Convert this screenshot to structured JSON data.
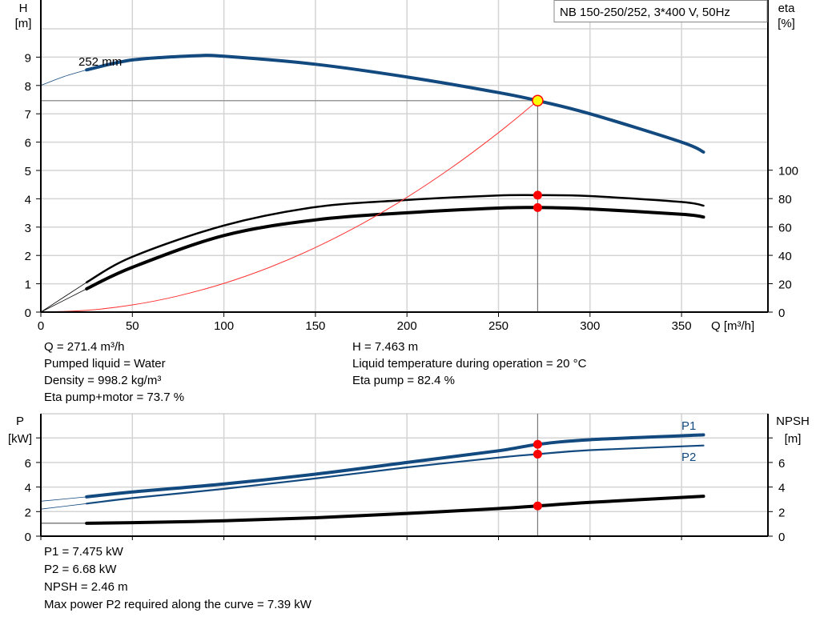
{
  "colors": {
    "head": "#12497f",
    "power": "#12497f",
    "eta": "#000000",
    "npsh": "#000000",
    "system": "#ff3333",
    "marker": "#ff0000",
    "duty_marker": "#ffff00",
    "grid": "#d4d4d4"
  },
  "chart_data": [
    {
      "type": "line",
      "title": "NB 150-250/252, 3*400 V, 50Hz",
      "xlabel": "Q [m³/h]",
      "ylabel": "H\n[m]",
      "ylabel_line1": "H",
      "ylabel_line2": "[m]",
      "y2label_line1": "eta",
      "y2label_line2": "[%]",
      "xlim": [
        0,
        400
      ],
      "ylim": [
        0,
        11
      ],
      "y2lim": [
        0,
        220
      ],
      "x_ticks": [
        0,
        50,
        100,
        150,
        200,
        250,
        300,
        350
      ],
      "y_ticks": [
        0,
        1,
        2,
        3,
        4,
        5,
        6,
        7,
        8,
        9
      ],
      "y2_ticks": [
        0,
        20,
        40,
        60,
        80,
        100
      ],
      "grid": true,
      "curve_label": "252 mm",
      "series": [
        {
          "key": "head",
          "axis": "left",
          "x": [
            25,
            50,
            85,
            100,
            150,
            200,
            250,
            271.4,
            300,
            350,
            362
          ],
          "y": [
            8.55,
            8.9,
            9.05,
            9.03,
            8.75,
            8.3,
            7.75,
            7.463,
            7.0,
            6.0,
            5.65
          ],
          "extension": {
            "x": [
              0,
              12,
              25
            ],
            "y": [
              8.0,
              8.3,
              8.55
            ]
          }
        },
        {
          "key": "eta_pump",
          "axis": "right",
          "x": [
            25,
            50,
            100,
            150,
            200,
            250,
            271.4,
            300,
            350,
            362
          ],
          "y": [
            21,
            39,
            61,
            74,
            79,
            82.2,
            82.4,
            81.8,
            77.6,
            75
          ],
          "extension": {
            "x": [
              0,
              25
            ],
            "y": [
              0,
              21
            ]
          }
        },
        {
          "key": "eta_pump_motor",
          "axis": "right",
          "x": [
            25,
            50,
            100,
            150,
            200,
            250,
            271.4,
            300,
            350,
            362
          ],
          "y": [
            16.4,
            31.6,
            54,
            65,
            70,
            73.3,
            73.7,
            72.7,
            69,
            67
          ],
          "extension": {
            "x": [
              0,
              25
            ],
            "y": [
              0,
              16.4
            ]
          }
        },
        {
          "key": "system",
          "axis": "left",
          "x": [
            0,
            25,
            50,
            75,
            100,
            125,
            150,
            175,
            200,
            225,
            250,
            271.4
          ],
          "y": [
            0,
            0.063,
            0.253,
            0.57,
            1.013,
            1.583,
            2.279,
            3.103,
            4.052,
            5.129,
            6.332,
            7.463
          ]
        }
      ],
      "duty_point": {
        "Q": 271.4,
        "H": 7.463,
        "eta_pump": 82.4,
        "eta_pump_motor": 73.7
      }
    },
    {
      "type": "line",
      "ylabel_line1": "P",
      "ylabel_line2": "[kW]",
      "y2label_line1": "NPSH",
      "y2label_line2": "[m]",
      "xlim": [
        0,
        400
      ],
      "ylim": [
        0,
        10
      ],
      "y2lim": [
        0,
        10
      ],
      "x_ticks": [
        0,
        50,
        100,
        150,
        200,
        250,
        300,
        350
      ],
      "y_ticks": [
        0,
        2,
        4,
        6,
        8
      ],
      "y_tick_labels": [
        "0",
        "2",
        "4",
        "6",
        ""
      ],
      "y2_tick_labels": [
        "0",
        "2",
        "4",
        "6",
        ""
      ],
      "grid": true,
      "series": [
        {
          "key": "p1",
          "name": "P1",
          "axis": "left",
          "x": [
            25,
            50,
            100,
            150,
            200,
            250,
            271.4,
            300,
            362
          ],
          "y": [
            3.2,
            3.6,
            4.25,
            5.05,
            6.0,
            6.95,
            7.475,
            7.85,
            8.25
          ],
          "extension": {
            "x": [
              0,
              25
            ],
            "y": [
              2.85,
              3.2
            ]
          }
        },
        {
          "key": "p2",
          "name": "P2",
          "axis": "left",
          "x": [
            25,
            50,
            100,
            150,
            200,
            250,
            271.4,
            300,
            362
          ],
          "y": [
            2.65,
            3.1,
            3.85,
            4.7,
            5.6,
            6.4,
            6.68,
            7.0,
            7.38
          ],
          "extension": {
            "x": [
              0,
              25
            ],
            "y": [
              2.2,
              2.65
            ]
          }
        },
        {
          "key": "npsh",
          "axis": "right",
          "x": [
            25,
            50,
            100,
            150,
            200,
            250,
            271.4,
            300,
            362
          ],
          "y": [
            1.05,
            1.1,
            1.25,
            1.5,
            1.85,
            2.25,
            2.46,
            2.75,
            3.25
          ],
          "extension": {
            "x": [
              0,
              25
            ],
            "y": [
              1.05,
              1.05
            ]
          }
        }
      ],
      "duty_point": {
        "Q": 271.4,
        "P1": 7.475,
        "P2": 6.68,
        "NPSH": 2.46
      }
    }
  ],
  "info_top": {
    "q": "Q = 271.4 m³/h",
    "liquid": "Pumped liquid = Water",
    "density": "Density = 998.2 kg/m³",
    "eta_pm": "Eta pump+motor = 73.7 %",
    "h": "H = 7.463 m",
    "temp": "Liquid temperature during operation = 20 °C",
    "eta_p": "Eta pump = 82.4 %"
  },
  "info_bottom": {
    "p1": "P1 = 7.475 kW",
    "p2": "P2 = 6.68 kW",
    "npsh": "NPSH = 2.46 m",
    "max_p2": "Max power P2 required along the curve = 7.39 kW"
  }
}
